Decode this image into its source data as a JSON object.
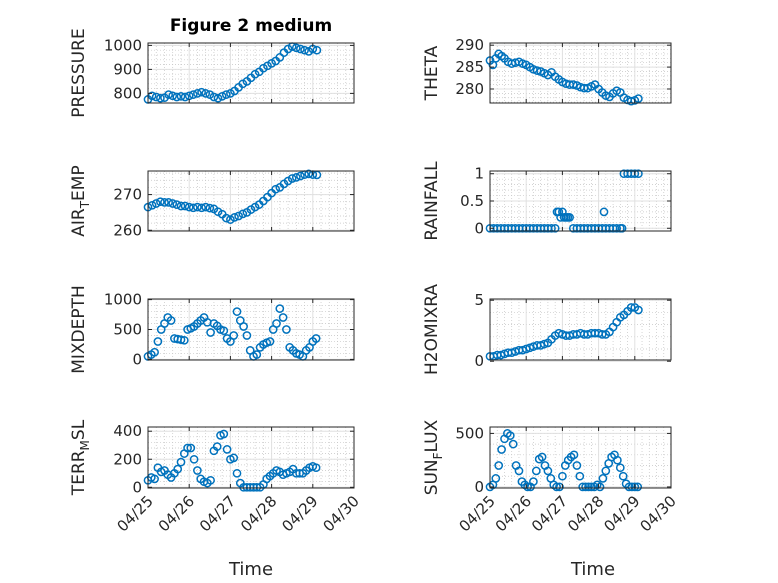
{
  "figure_title": "Figure 2 medium",
  "x_axis_label": "Time",
  "x_tick_labels": [
    "04/25",
    "04/26",
    "04/27",
    "04/28",
    "04/29",
    "04/30"
  ],
  "marker_color": "#0072BD",
  "chart_data": [
    {
      "type": "scatter",
      "ylabel": "PRESSURE",
      "ylim": [
        760,
        1010
      ],
      "yticks": [
        800,
        900,
        1000
      ],
      "series": [
        {
          "x": [
            0,
            0.1,
            0.2,
            0.3,
            0.4,
            0.5,
            0.6,
            0.7,
            0.8,
            0.9,
            1,
            1.1,
            1.2,
            1.3,
            1.4,
            1.5,
            1.6,
            1.7,
            1.8,
            1.9,
            2,
            2.1,
            2.2,
            2.3,
            2.4,
            2.5,
            2.6,
            2.7,
            2.8,
            2.9,
            3,
            3.1,
            3.2,
            3.3,
            3.4,
            3.5,
            3.6,
            3.7,
            3.8,
            3.9,
            4,
            4.1
          ],
          "y": [
            775,
            790,
            785,
            780,
            782,
            795,
            790,
            785,
            788,
            785,
            790,
            795,
            800,
            805,
            800,
            795,
            785,
            780,
            788,
            795,
            800,
            810,
            825,
            840,
            850,
            865,
            880,
            890,
            905,
            915,
            925,
            935,
            950,
            970,
            985,
            995,
            990,
            985,
            980,
            975,
            985,
            980
          ]
        }
      ]
    },
    {
      "type": "scatter",
      "ylabel": "THETA",
      "ylim": [
        276.8,
        290.5
      ],
      "yticks": [
        280,
        285,
        290
      ],
      "series": [
        {
          "x": [
            0,
            0.08,
            0.16,
            0.24,
            0.32,
            0.4,
            0.5,
            0.6,
            0.7,
            0.8,
            0.9,
            1,
            1.1,
            1.2,
            1.3,
            1.4,
            1.5,
            1.6,
            1.7,
            1.8,
            1.9,
            2,
            2.1,
            2.2,
            2.3,
            2.4,
            2.5,
            2.6,
            2.7,
            2.8,
            2.9,
            3,
            3.1,
            3.2,
            3.3,
            3.4,
            3.5,
            3.6,
            3.7,
            3.8,
            3.9,
            4,
            4.1
          ],
          "y": [
            286.5,
            285.5,
            287,
            288,
            287.5,
            287,
            286.2,
            285.8,
            286,
            286.2,
            285.8,
            285.5,
            285,
            284.5,
            284.2,
            284,
            283.6,
            283.2,
            283.8,
            282.8,
            282.2,
            281.6,
            281.2,
            281,
            281,
            280.8,
            280.4,
            280.2,
            280.2,
            280.6,
            281,
            280,
            279.2,
            278.5,
            278.2,
            279,
            279.6,
            279.2,
            278,
            277.5,
            277.2,
            277.4,
            277.8
          ]
        }
      ]
    },
    {
      "type": "scatter",
      "ylabel": "AIR_TEMP",
      "ylim": [
        259.8,
        276.6
      ],
      "yticks": [
        260,
        270
      ],
      "series": [
        {
          "x": [
            0,
            0.1,
            0.2,
            0.3,
            0.4,
            0.5,
            0.6,
            0.7,
            0.8,
            0.9,
            1,
            1.1,
            1.2,
            1.3,
            1.4,
            1.5,
            1.6,
            1.7,
            1.8,
            1.9,
            2,
            2.1,
            2.2,
            2.3,
            2.4,
            2.5,
            2.6,
            2.7,
            2.8,
            2.9,
            3,
            3.1,
            3.2,
            3.3,
            3.4,
            3.5,
            3.6,
            3.7,
            3.8,
            3.9,
            4,
            4.1
          ],
          "y": [
            266.5,
            267,
            267.5,
            268,
            267.8,
            267.8,
            267.5,
            267.2,
            266.8,
            266.8,
            266.5,
            266.3,
            266.5,
            266.3,
            266.5,
            266.2,
            266,
            265.2,
            264.5,
            263.4,
            263,
            263.6,
            264,
            264.6,
            265,
            265.8,
            266.5,
            267.2,
            268.2,
            269.3,
            270.4,
            271.5,
            272,
            273,
            273.8,
            274.5,
            274.8,
            275.2,
            275.6,
            275.8,
            275.6,
            275.5
          ]
        }
      ]
    },
    {
      "type": "scatter",
      "ylabel": "RAINFALL",
      "ylim": [
        -0.05,
        1.05
      ],
      "yticks": [
        0,
        0.5,
        1
      ],
      "series": [
        {
          "x": [
            0,
            0.1,
            0.2,
            0.3,
            0.4,
            0.5,
            0.6,
            0.7,
            0.8,
            0.9,
            1,
            1.1,
            1.2,
            1.3,
            1.4,
            1.5,
            1.6,
            1.7,
            1.8,
            1.85,
            1.9,
            1.95,
            2,
            2.05,
            2.1,
            2.15,
            2.2,
            2.3,
            2.4,
            2.5,
            2.6,
            2.7,
            2.8,
            2.9,
            3,
            3.1,
            3.15,
            3.2,
            3.3,
            3.4,
            3.5,
            3.6,
            3.65,
            3.7,
            3.8,
            3.9,
            4,
            4.1
          ],
          "y": [
            0,
            0,
            0,
            0,
            0,
            0,
            0,
            0,
            0,
            0,
            0,
            0,
            0,
            0,
            0,
            0,
            0,
            0,
            0,
            0.3,
            0.3,
            0.2,
            0.3,
            0.2,
            0.2,
            0.2,
            0.2,
            0,
            0,
            0,
            0,
            0,
            0,
            0,
            0,
            0,
            0.3,
            0,
            0,
            0,
            0,
            0,
            0,
            1,
            1,
            1,
            1,
            1
          ]
        }
      ]
    },
    {
      "type": "scatter",
      "ylabel": "MIXDEPTH",
      "ylim": [
        -10,
        1010
      ],
      "yticks": [
        0,
        500,
        1000
      ],
      "series": [
        {
          "x": [
            0,
            0.08,
            0.16,
            0.24,
            0.32,
            0.4,
            0.48,
            0.56,
            0.64,
            0.72,
            0.8,
            0.88,
            0.96,
            1.04,
            1.12,
            1.2,
            1.28,
            1.36,
            1.44,
            1.52,
            1.6,
            1.68,
            1.76,
            1.84,
            1.92,
            2,
            2.08,
            2.16,
            2.24,
            2.32,
            2.4,
            2.48,
            2.56,
            2.64,
            2.72,
            2.8,
            2.88,
            2.96,
            3.04,
            3.12,
            3.2,
            3.28,
            3.36,
            3.44,
            3.52,
            3.6,
            3.68,
            3.76,
            3.84,
            3.92,
            4,
            4.08
          ],
          "y": [
            50,
            80,
            120,
            300,
            500,
            600,
            700,
            650,
            350,
            340,
            330,
            320,
            500,
            520,
            550,
            600,
            650,
            700,
            620,
            450,
            600,
            560,
            500,
            480,
            350,
            300,
            400,
            800,
            650,
            550,
            400,
            150,
            50,
            80,
            200,
            250,
            280,
            300,
            500,
            600,
            850,
            700,
            500,
            200,
            150,
            100,
            80,
            50,
            150,
            200,
            300,
            350
          ]
        }
      ]
    },
    {
      "type": "scatter",
      "ylabel": "H2OMIXRA",
      "ylim": [
        0.1,
        5.1
      ],
      "yticks": [
        0,
        5
      ],
      "series": [
        {
          "x": [
            0,
            0.1,
            0.2,
            0.3,
            0.4,
            0.5,
            0.6,
            0.7,
            0.8,
            0.9,
            1,
            1.1,
            1.2,
            1.3,
            1.4,
            1.5,
            1.6,
            1.7,
            1.8,
            1.9,
            2,
            2.1,
            2.2,
            2.3,
            2.4,
            2.5,
            2.6,
            2.7,
            2.8,
            2.9,
            3,
            3.1,
            3.2,
            3.3,
            3.4,
            3.5,
            3.6,
            3.7,
            3.8,
            3.9,
            4,
            4.1
          ],
          "y": [
            0.4,
            0.4,
            0.5,
            0.5,
            0.6,
            0.7,
            0.7,
            0.8,
            0.9,
            0.9,
            1,
            1.1,
            1.2,
            1.3,
            1.3,
            1.4,
            1.5,
            1.8,
            2.1,
            2.3,
            2.2,
            2.1,
            2.1,
            2.2,
            2.2,
            2.3,
            2.2,
            2.2,
            2.3,
            2.3,
            2.3,
            2.2,
            2.2,
            2.4,
            2.8,
            3.2,
            3.6,
            3.8,
            4.1,
            4.4,
            4.4,
            4.2
          ]
        }
      ]
    },
    {
      "type": "scatter",
      "ylabel": "TERR_MSL",
      "ylim": [
        -5,
        430
      ],
      "yticks": [
        0,
        200,
        400
      ],
      "series": [
        {
          "x": [
            0,
            0.08,
            0.16,
            0.24,
            0.32,
            0.4,
            0.48,
            0.56,
            0.64,
            0.72,
            0.8,
            0.88,
            0.96,
            1.04,
            1.12,
            1.2,
            1.28,
            1.36,
            1.44,
            1.52,
            1.6,
            1.68,
            1.76,
            1.84,
            1.92,
            2,
            2.08,
            2.16,
            2.24,
            2.32,
            2.4,
            2.48,
            2.56,
            2.64,
            2.72,
            2.8,
            2.88,
            2.96,
            3.04,
            3.12,
            3.2,
            3.28,
            3.36,
            3.44,
            3.52,
            3.6,
            3.68,
            3.76,
            3.84,
            3.92,
            4,
            4.08
          ],
          "y": [
            50,
            70,
            60,
            140,
            110,
            120,
            90,
            70,
            100,
            130,
            180,
            240,
            280,
            280,
            200,
            120,
            60,
            40,
            30,
            50,
            260,
            290,
            370,
            380,
            270,
            200,
            210,
            100,
            30,
            0,
            0,
            0,
            0,
            0,
            0,
            20,
            60,
            80,
            100,
            120,
            110,
            90,
            100,
            110,
            130,
            100,
            100,
            100,
            120,
            140,
            150,
            140
          ]
        }
      ]
    },
    {
      "type": "scatter",
      "ylabel": "SUN_FLUX",
      "ylim": [
        -10,
        560
      ],
      "yticks": [
        0,
        500
      ],
      "series": [
        {
          "x": [
            0,
            0.08,
            0.16,
            0.24,
            0.32,
            0.4,
            0.48,
            0.56,
            0.64,
            0.72,
            0.8,
            0.88,
            0.96,
            1.04,
            1.12,
            1.2,
            1.28,
            1.36,
            1.44,
            1.52,
            1.6,
            1.68,
            1.76,
            1.84,
            1.92,
            2,
            2.08,
            2.16,
            2.24,
            2.32,
            2.4,
            2.48,
            2.56,
            2.64,
            2.72,
            2.8,
            2.88,
            2.96,
            3.04,
            3.12,
            3.2,
            3.28,
            3.36,
            3.44,
            3.52,
            3.6,
            3.68,
            3.76,
            3.84,
            3.92,
            4,
            4.08
          ],
          "y": [
            0,
            20,
            80,
            200,
            350,
            450,
            500,
            480,
            400,
            200,
            150,
            50,
            20,
            0,
            0,
            50,
            150,
            260,
            280,
            200,
            150,
            80,
            20,
            0,
            0,
            100,
            200,
            250,
            280,
            300,
            200,
            100,
            0,
            0,
            0,
            0,
            0,
            20,
            0,
            80,
            150,
            220,
            280,
            300,
            250,
            180,
            100,
            30,
            0,
            0,
            0,
            0
          ]
        }
      ]
    }
  ]
}
